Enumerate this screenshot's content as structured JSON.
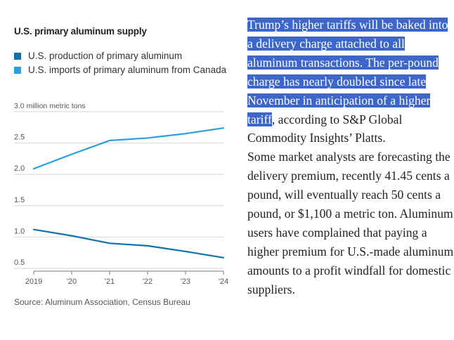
{
  "chart": {
    "title": "U.S. primary aluminum supply",
    "legend": [
      {
        "label": "U.S. production of primary aluminum",
        "color": "#0f73ab"
      },
      {
        "label": "U.S. imports of primary aluminum from Canada",
        "color": "#2aa0dc"
      }
    ],
    "y_unit_label": "million metric tons",
    "source": "Source: Aluminum Association, Census Bureau"
  },
  "chart_data": {
    "type": "line",
    "title": "U.S. primary aluminum supply",
    "x": [
      "2019",
      "'20",
      "'21",
      "'22",
      "'23",
      "'24"
    ],
    "x_numeric": [
      2019,
      2020,
      2021,
      2022,
      2023,
      2024
    ],
    "ylabel": "million metric tons",
    "ylim": [
      0.5,
      3.0
    ],
    "yticks": [
      0.5,
      1.0,
      1.5,
      2.0,
      2.5,
      3.0
    ],
    "ytick_labels": [
      "0.5",
      "1.0",
      "1.5",
      "2.0",
      "2.5",
      "3.0 million metric tons"
    ],
    "grid": "horizontal",
    "legend_position": "top-left",
    "series": [
      {
        "name": "U.S. production of primary aluminum",
        "color": "#0f73ab",
        "values": [
          1.12,
          1.02,
          0.9,
          0.86,
          0.77,
          0.67
        ]
      },
      {
        "name": "U.S. imports of primary aluminum from Canada",
        "color": "#2aa0dc",
        "values": [
          2.09,
          2.32,
          2.54,
          2.58,
          2.65,
          2.74
        ]
      }
    ]
  },
  "article": {
    "paragraph1_highlighted": "Trump’s higher tariffs will be baked into a delivery charge attached to all aluminum transactions. The per-pound charge has nearly doubled since late November in anticipation of a higher tariff",
    "paragraph1_rest": ", according to S&P Global Commodity Insights’ Platts.",
    "paragraph2": "Some market analysts are forecasting the delivery premium, recently 41.45 cents a pound, will eventually reach 50 cents a pound, or $1,100 a metric ton. Aluminum users have complained that paying a higher premium for U.S.-made aluminum amounts to a profit windfall for domestic suppliers."
  }
}
